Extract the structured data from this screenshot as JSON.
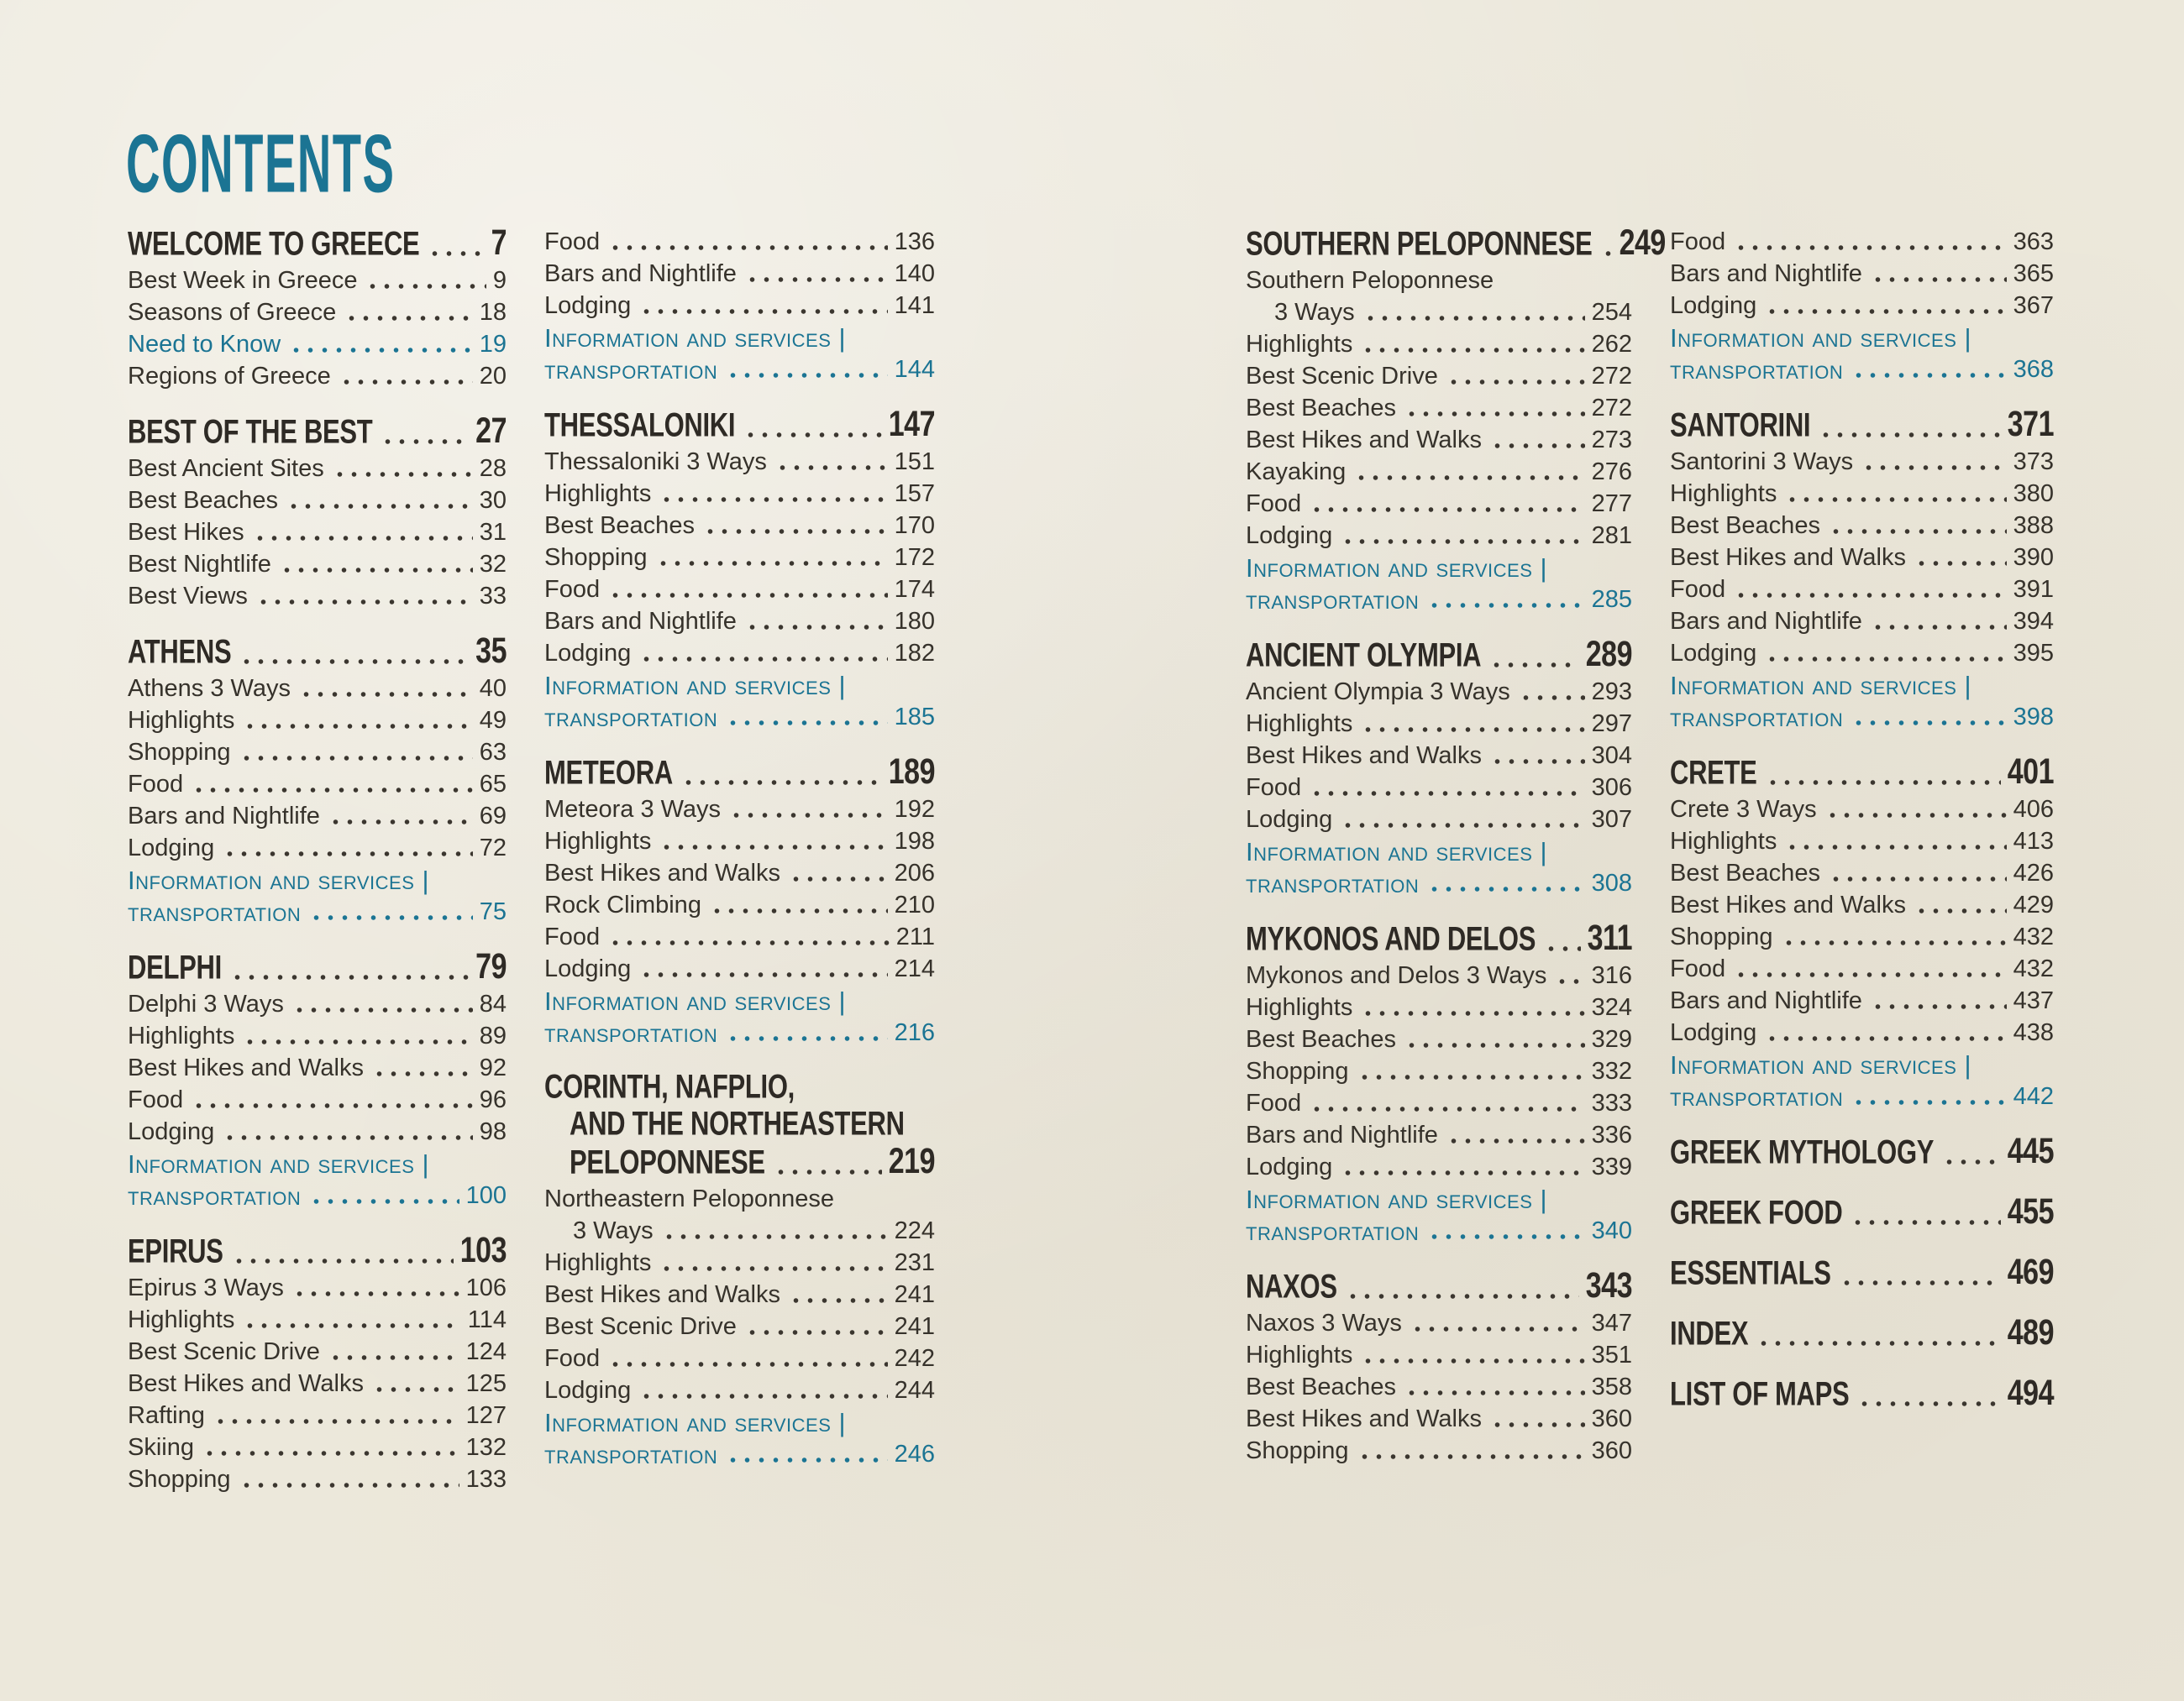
{
  "page": {
    "title": "CONTENTS"
  },
  "colors": {
    "teal": "#1b7493",
    "ink": "#2e2a25",
    "paper": "#ece8db"
  },
  "info_label": {
    "line1": "Information and services |",
    "line2": "transportation"
  },
  "columns": [
    {
      "sections": [
        {
          "heading": {
            "lines": [
              "WELCOME TO GREECE"
            ],
            "page": "7"
          },
          "items": [
            {
              "label": "Best Week in Greece",
              "page": "9"
            },
            {
              "label": "Seasons of Greece",
              "page": "18"
            },
            {
              "label": "Need to Know",
              "page": "19",
              "teal": true
            },
            {
              "label": "Regions of Greece",
              "page": "20"
            }
          ]
        },
        {
          "heading": {
            "lines": [
              "BEST OF THE BEST"
            ],
            "page": "27"
          },
          "items": [
            {
              "label": "Best Ancient Sites",
              "page": "28"
            },
            {
              "label": "Best Beaches",
              "page": "30"
            },
            {
              "label": "Best Hikes",
              "page": "31"
            },
            {
              "label": "Best Nightlife",
              "page": "32"
            },
            {
              "label": "Best Views",
              "page": "33"
            }
          ]
        },
        {
          "heading": {
            "lines": [
              "ATHENS"
            ],
            "page": "35"
          },
          "items": [
            {
              "label": "Athens 3 Ways",
              "page": "40"
            },
            {
              "label": "Highlights",
              "page": "49"
            },
            {
              "label": "Shopping",
              "page": "63"
            },
            {
              "label": "Food",
              "page": "65"
            },
            {
              "label": "Bars and Nightlife",
              "page": "69"
            },
            {
              "label": "Lodging",
              "page": "72"
            },
            {
              "type": "info",
              "page": "75"
            }
          ]
        },
        {
          "heading": {
            "lines": [
              "DELPHI"
            ],
            "page": "79"
          },
          "items": [
            {
              "label": "Delphi 3 Ways",
              "page": "84"
            },
            {
              "label": "Highlights",
              "page": "89"
            },
            {
              "label": "Best Hikes and Walks",
              "page": "92"
            },
            {
              "label": "Food",
              "page": "96"
            },
            {
              "label": "Lodging",
              "page": "98"
            },
            {
              "type": "info",
              "page": "100"
            }
          ]
        },
        {
          "heading": {
            "lines": [
              "EPIRUS"
            ],
            "page": "103"
          },
          "items": [
            {
              "label": "Epirus 3 Ways",
              "page": "106"
            },
            {
              "label": "Highlights",
              "page": "114"
            },
            {
              "label": "Best Scenic Drive",
              "page": "124"
            },
            {
              "label": "Best Hikes and Walks",
              "page": "125"
            },
            {
              "label": "Rafting",
              "page": "127"
            },
            {
              "label": "Skiing",
              "page": "132"
            },
            {
              "label": "Shopping",
              "page": "133"
            }
          ]
        }
      ]
    },
    {
      "sections": [
        {
          "heading": null,
          "items": [
            {
              "label": "Food",
              "page": "136"
            },
            {
              "label": "Bars and Nightlife",
              "page": "140"
            },
            {
              "label": "Lodging",
              "page": "141"
            },
            {
              "type": "info",
              "page": "144"
            }
          ]
        },
        {
          "heading": {
            "lines": [
              "THESSALONIKI"
            ],
            "page": "147"
          },
          "items": [
            {
              "label": "Thessaloniki 3 Ways",
              "page": "151"
            },
            {
              "label": "Highlights",
              "page": "157"
            },
            {
              "label": "Best Beaches",
              "page": "170"
            },
            {
              "label": "Shopping",
              "page": "172"
            },
            {
              "label": "Food",
              "page": "174"
            },
            {
              "label": "Bars and Nightlife",
              "page": "180"
            },
            {
              "label": "Lodging",
              "page": "182"
            },
            {
              "type": "info",
              "page": "185"
            }
          ]
        },
        {
          "heading": {
            "lines": [
              "METEORA"
            ],
            "page": "189"
          },
          "items": [
            {
              "label": "Meteora 3 Ways",
              "page": "192"
            },
            {
              "label": "Highlights",
              "page": "198"
            },
            {
              "label": "Best Hikes and Walks",
              "page": "206"
            },
            {
              "label": "Rock Climbing",
              "page": "210"
            },
            {
              "label": "Food",
              "page": "211"
            },
            {
              "label": "Lodging",
              "page": "214"
            },
            {
              "type": "info",
              "page": "216"
            }
          ]
        },
        {
          "heading": {
            "lines": [
              "CORINTH, NAFPLIO,",
              "AND THE NORTHEASTERN",
              "PELOPONNESE"
            ],
            "page": "219"
          },
          "items": [
            {
              "type": "wrap",
              "first": "Northeastern Peloponnese",
              "label": "3 Ways",
              "page": "224"
            },
            {
              "label": "Highlights",
              "page": "231"
            },
            {
              "label": "Best Hikes and Walks",
              "page": "241"
            },
            {
              "label": "Best Scenic Drive",
              "page": "241"
            },
            {
              "label": "Food",
              "page": "242"
            },
            {
              "label": "Lodging",
              "page": "244"
            },
            {
              "type": "info",
              "page": "246"
            }
          ]
        }
      ]
    },
    {
      "sections": [
        {
          "heading": {
            "lines": [
              "SOUTHERN PELOPONNESE"
            ],
            "page": "249"
          },
          "items": [
            {
              "type": "wrap",
              "first": "Southern Peloponnese",
              "label": "3 Ways",
              "page": "254"
            },
            {
              "label": "Highlights",
              "page": "262"
            },
            {
              "label": "Best Scenic Drive",
              "page": "272"
            },
            {
              "label": "Best Beaches",
              "page": "272"
            },
            {
              "label": "Best Hikes and Walks",
              "page": "273"
            },
            {
              "label": "Kayaking",
              "page": "276"
            },
            {
              "label": "Food",
              "page": "277"
            },
            {
              "label": "Lodging",
              "page": "281"
            },
            {
              "type": "info",
              "page": "285"
            }
          ]
        },
        {
          "heading": {
            "lines": [
              "ANCIENT OLYMPIA"
            ],
            "page": "289"
          },
          "items": [
            {
              "label": "Ancient Olympia 3 Ways",
              "page": "293"
            },
            {
              "label": "Highlights",
              "page": "297"
            },
            {
              "label": "Best Hikes and Walks",
              "page": "304"
            },
            {
              "label": "Food",
              "page": "306"
            },
            {
              "label": "Lodging",
              "page": "307"
            },
            {
              "type": "info",
              "page": "308"
            }
          ]
        },
        {
          "heading": {
            "lines": [
              "MYKONOS AND DELOS"
            ],
            "page": "311"
          },
          "items": [
            {
              "label": "Mykonos and Delos 3 Ways",
              "page": "316"
            },
            {
              "label": "Highlights",
              "page": "324"
            },
            {
              "label": "Best Beaches",
              "page": "329"
            },
            {
              "label": "Shopping",
              "page": "332"
            },
            {
              "label": "Food",
              "page": "333"
            },
            {
              "label": "Bars and Nightlife",
              "page": "336"
            },
            {
              "label": "Lodging",
              "page": "339"
            },
            {
              "type": "info",
              "page": "340"
            }
          ]
        },
        {
          "heading": {
            "lines": [
              "NAXOS"
            ],
            "page": "343"
          },
          "items": [
            {
              "label": "Naxos 3 Ways",
              "page": "347"
            },
            {
              "label": "Highlights",
              "page": "351"
            },
            {
              "label": "Best Beaches",
              "page": "358"
            },
            {
              "label": "Best Hikes and Walks",
              "page": "360"
            },
            {
              "label": "Shopping",
              "page": "360"
            }
          ]
        }
      ]
    },
    {
      "sections": [
        {
          "heading": null,
          "items": [
            {
              "label": "Food",
              "page": "363"
            },
            {
              "label": "Bars and Nightlife",
              "page": "365"
            },
            {
              "label": "Lodging",
              "page": "367"
            },
            {
              "type": "info",
              "page": "368"
            }
          ]
        },
        {
          "heading": {
            "lines": [
              "SANTORINI"
            ],
            "page": "371"
          },
          "items": [
            {
              "label": "Santorini 3 Ways",
              "page": "373"
            },
            {
              "label": "Highlights",
              "page": "380"
            },
            {
              "label": "Best Beaches",
              "page": "388"
            },
            {
              "label": "Best Hikes and Walks",
              "page": "390"
            },
            {
              "label": "Food",
              "page": "391"
            },
            {
              "label": "Bars and Nightlife",
              "page": "394"
            },
            {
              "label": "Lodging",
              "page": "395"
            },
            {
              "type": "info",
              "page": "398"
            }
          ]
        },
        {
          "heading": {
            "lines": [
              "CRETE"
            ],
            "page": "401"
          },
          "items": [
            {
              "label": "Crete 3 Ways",
              "page": "406"
            },
            {
              "label": "Highlights",
              "page": "413"
            },
            {
              "label": "Best Beaches",
              "page": "426"
            },
            {
              "label": "Best Hikes and Walks",
              "page": "429"
            },
            {
              "label": "Shopping",
              "page": "432"
            },
            {
              "label": "Food",
              "page": "432"
            },
            {
              "label": "Bars and Nightlife",
              "page": "437"
            },
            {
              "label": "Lodging",
              "page": "438"
            },
            {
              "type": "info",
              "page": "442"
            }
          ]
        },
        {
          "heading": {
            "lines": [
              "GREEK MYTHOLOGY"
            ],
            "page": "445"
          },
          "items": []
        },
        {
          "heading": {
            "lines": [
              "GREEK FOOD"
            ],
            "page": "455"
          },
          "items": []
        },
        {
          "heading": {
            "lines": [
              "ESSENTIALS"
            ],
            "page": "469"
          },
          "items": []
        },
        {
          "heading": {
            "lines": [
              "INDEX"
            ],
            "page": "489"
          },
          "items": []
        },
        {
          "heading": {
            "lines": [
              "LIST OF MAPS"
            ],
            "page": "494"
          },
          "items": []
        }
      ]
    }
  ]
}
